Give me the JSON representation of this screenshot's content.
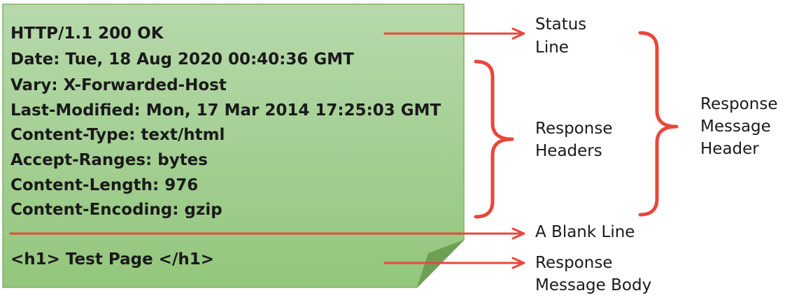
{
  "note": {
    "lines": [
      "HTTP/1.1 200 OK",
      "Date: Tue, 18 Aug 2020 00:40:36 GMT",
      "Vary: X-Forwarded-Host",
      "Last-Modified: Mon, 17 Mar 2014 17:25:03 GMT",
      "Content-Type: text/html",
      "Accept-Ranges: bytes",
      "Content-Length: 976",
      "Content-Encoding: gzip"
    ],
    "body_line": "<h1> Test Page </h1>",
    "fill_top": "#b7d9ac",
    "fill_bottom": "#93c67c",
    "border": "#7fb466",
    "fold_color": "#6f9f55"
  },
  "labels": {
    "status_line": [
      "Status",
      "Line"
    ],
    "response_headers": [
      "Response",
      "Headers"
    ],
    "blank_line": [
      "A Blank Line"
    ],
    "response_message_body": [
      "Response",
      "Message Body"
    ],
    "response_message_header": [
      "Response",
      "Message",
      "Header"
    ]
  },
  "accent_color": "#e8473a"
}
